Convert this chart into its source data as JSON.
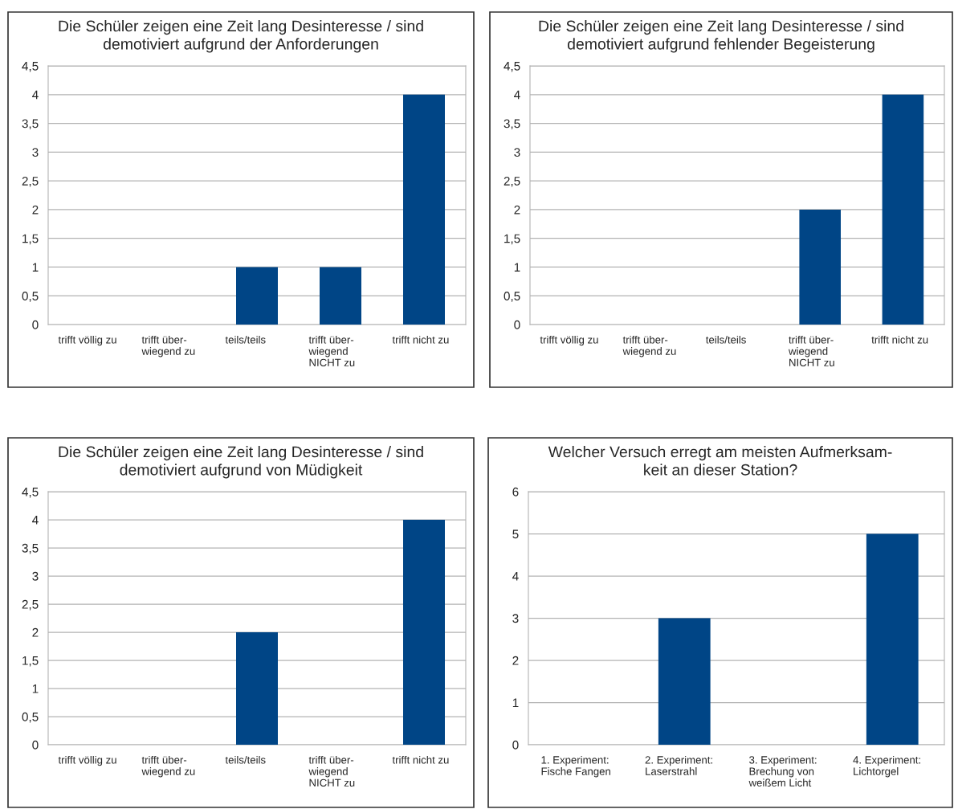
{
  "chart_data": [
    {
      "type": "bar",
      "title": "Die Schüler zeigen eine Zeit lang Desinteresse / sind\ndemotiviert aufgrund der Anforderungen",
      "categories": [
        "trifft völlig zu",
        "trifft über-\nwiegend zu",
        "teils/teils",
        "trifft über-\nwiegend\nNICHT zu",
        "trifft nicht zu"
      ],
      "values": [
        0,
        0,
        1,
        1,
        4
      ],
      "color": "#004586",
      "ylim": [
        0,
        4.5
      ],
      "yticks": [
        0,
        {
          "value": 0.5,
          "label": "0,5"
        },
        1,
        {
          "value": 1.5,
          "label": "1,5"
        },
        2,
        {
          "value": 2.5,
          "label": "2,5"
        },
        3,
        {
          "value": 3.5,
          "label": "3,5"
        },
        4,
        {
          "value": 4.5,
          "label": "4,5"
        }
      ],
      "grid": "y",
      "legend": false
    },
    {
      "type": "bar",
      "title": "Die Schüler zeigen eine Zeit lang Desinteresse / sind\ndemotiviert aufgrund fehlender Begeisterung",
      "categories": [
        "trifft völlig zu",
        "trifft über-\nwiegend zu",
        "teils/teils",
        "trifft über-\nwiegend\nNICHT zu",
        "trifft nicht zu"
      ],
      "values": [
        0,
        0,
        0,
        2,
        4
      ],
      "color": "#004586",
      "ylim": [
        0,
        4.5
      ],
      "yticks": [
        0,
        {
          "value": 0.5,
          "label": "0,5"
        },
        1,
        {
          "value": 1.5,
          "label": "1,5"
        },
        2,
        {
          "value": 2.5,
          "label": "2,5"
        },
        3,
        {
          "value": 3.5,
          "label": "3,5"
        },
        4,
        {
          "value": 4.5,
          "label": "4,5"
        }
      ],
      "grid": "y",
      "legend": false
    },
    {
      "type": "bar",
      "title": "Die Schüler zeigen eine Zeit lang Desinteresse / sind\ndemotiviert aufgrund von Müdigkeit",
      "categories": [
        "trifft völlig zu",
        "trifft über-\nwiegend zu",
        "teils/teils",
        "trifft über-\nwiegend\nNICHT zu",
        "trifft nicht zu"
      ],
      "values": [
        0,
        0,
        2,
        0,
        4
      ],
      "color": "#004586",
      "ylim": [
        0,
        4.5
      ],
      "yticks": [
        0,
        {
          "value": 0.5,
          "label": "0,5"
        },
        1,
        {
          "value": 1.5,
          "label": "1,5"
        },
        2,
        {
          "value": 2.5,
          "label": "2,5"
        },
        3,
        {
          "value": 3.5,
          "label": "3,5"
        },
        4,
        {
          "value": 4.5,
          "label": "4,5"
        }
      ],
      "grid": "y",
      "legend": false
    },
    {
      "type": "bar",
      "title": "Welcher Versuch erregt am meisten Aufmerksam-\nkeit an dieser Station?",
      "categories": [
        "1. Experiment:\nFische Fangen",
        "2. Experiment:\nLaserstrahl",
        "3. Experiment:\nBrechung von\nweißem Licht",
        "4. Experiment:\nLichtorgel"
      ],
      "values": [
        0,
        3,
        0,
        5
      ],
      "color": "#004586",
      "ylim": [
        0,
        6
      ],
      "yticks": [
        0,
        1,
        2,
        3,
        4,
        5,
        6
      ],
      "grid": "y",
      "legend": false
    }
  ]
}
